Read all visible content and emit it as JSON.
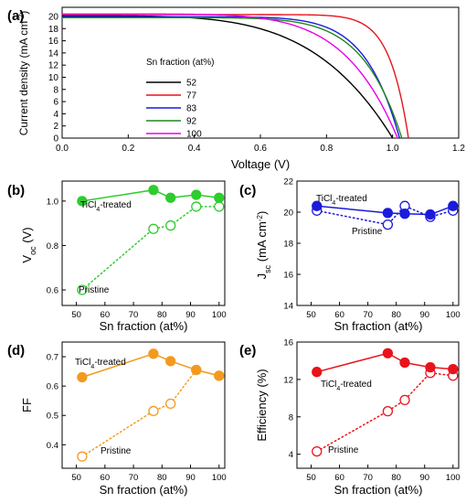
{
  "chart_data": [
    {
      "panel": "(a)",
      "type": "line",
      "xlabel": "Voltage (V)",
      "ylabel": "Current density (mA cm⁻²)",
      "xlim": [
        0.0,
        1.2
      ],
      "ylim": [
        0,
        21.5
      ],
      "xticks": [
        "0.0",
        "0.2",
        "0.4",
        "0.6",
        "0.8",
        "1.0",
        "1.2"
      ],
      "yticks": [
        "0",
        "2",
        "4",
        "6",
        "8",
        "10",
        "12",
        "14",
        "16",
        "18",
        "20"
      ],
      "legend_title": "Sn fraction (at%)",
      "legend_position": "center",
      "series": [
        {
          "name": "52",
          "color": "#000000",
          "jsc": 20.1,
          "voc": 1.0,
          "knee": 0.5
        },
        {
          "name": "77",
          "color": "#e8141b",
          "jsc": 20.3,
          "voc": 1.048,
          "knee": 0.88
        },
        {
          "name": "83",
          "color": "#1a1adc",
          "jsc": 19.95,
          "voc": 1.021,
          "knee": 0.78
        },
        {
          "name": "92",
          "color": "#1c8a1c",
          "jsc": 19.8,
          "voc": 1.028,
          "knee": 0.75
        },
        {
          "name": "100",
          "color": "#e800e8",
          "jsc": 20.4,
          "voc": 1.015,
          "knee": 0.66
        }
      ]
    },
    {
      "panel": "(b)",
      "type": "line",
      "xlabel": "Sn fraction (at%)",
      "ylabel": "Voc (V)",
      "xlim": [
        45,
        102
      ],
      "ylim": [
        0.53,
        1.09
      ],
      "xticks": [
        50,
        60,
        70,
        80,
        90,
        100
      ],
      "yticks": [
        0.6,
        0.8,
        1.0
      ],
      "ytick_labels": [
        "0.6",
        "0.8",
        "1.0"
      ],
      "color": "#2ecc2e",
      "x": [
        52,
        77,
        83,
        92,
        100
      ],
      "series": [
        {
          "name": "TiCl4-treated",
          "values": [
            1.0,
            1.05,
            1.015,
            1.028,
            1.015
          ],
          "style": "solid-filled"
        },
        {
          "name": "Pristine",
          "values": [
            0.6,
            0.875,
            0.89,
            0.975,
            0.975
          ],
          "style": "dotted-open"
        }
      ]
    },
    {
      "panel": "(c)",
      "type": "line",
      "xlabel": "Sn fraction (at%)",
      "ylabel": "Jsc (mA cm⁻²)",
      "xlim": [
        45,
        102
      ],
      "ylim": [
        14,
        22
      ],
      "xticks": [
        50,
        60,
        70,
        80,
        90,
        100
      ],
      "yticks": [
        14,
        16,
        18,
        20,
        22
      ],
      "ytick_labels": [
        "14",
        "16",
        "18",
        "20",
        "22"
      ],
      "color": "#1a1adc",
      "x": [
        52,
        77,
        83,
        92,
        100
      ],
      "series": [
        {
          "name": "TiCl4-treated",
          "values": [
            20.4,
            19.95,
            19.9,
            19.85,
            20.4
          ],
          "style": "solid-filled"
        },
        {
          "name": "Pristine",
          "values": [
            20.1,
            19.2,
            20.4,
            19.7,
            20.1
          ],
          "style": "dotted-open"
        }
      ]
    },
    {
      "panel": "(d)",
      "type": "line",
      "xlabel": "Sn fraction (at%)",
      "ylabel": "FF",
      "xlim": [
        45,
        102
      ],
      "ylim": [
        0.32,
        0.75
      ],
      "xticks": [
        50,
        60,
        70,
        80,
        90,
        100
      ],
      "yticks": [
        0.4,
        0.5,
        0.6,
        0.7
      ],
      "ytick_labels": [
        "0.4",
        "0.5",
        "0.6",
        "0.7"
      ],
      "color": "#f39a1e",
      "x": [
        52,
        77,
        83,
        92,
        100
      ],
      "series": [
        {
          "name": "TiCl4-treated",
          "values": [
            0.63,
            0.71,
            0.685,
            0.655,
            0.635
          ],
          "style": "solid-filled"
        },
        {
          "name": "Pristine",
          "values": [
            0.36,
            0.515,
            0.54,
            0.655,
            0.635
          ],
          "style": "dotted-open"
        }
      ]
    },
    {
      "panel": "(e)",
      "type": "line",
      "xlabel": "Sn fraction (at%)",
      "ylabel": "Efficiency (%)",
      "xlim": [
        45,
        102
      ],
      "ylim": [
        2.5,
        16
      ],
      "xticks": [
        50,
        60,
        70,
        80,
        90,
        100
      ],
      "yticks": [
        4,
        8,
        12,
        16
      ],
      "ytick_labels": [
        "4",
        "8",
        "12",
        "16"
      ],
      "color": "#e8141b",
      "x": [
        52,
        77,
        83,
        92,
        100
      ],
      "series": [
        {
          "name": "TiCl4-treated",
          "values": [
            12.8,
            14.8,
            13.8,
            13.3,
            13.1
          ],
          "style": "solid-filled"
        },
        {
          "name": "Pristine",
          "values": [
            4.3,
            8.6,
            9.8,
            12.7,
            12.4
          ],
          "style": "dotted-open"
        }
      ]
    }
  ],
  "labels": {
    "a_panel": "(a)",
    "b_panel": "(b)",
    "c_panel": "(c)",
    "d_panel": "(d)",
    "e_panel": "(e)",
    "ticl4_main": "TiCl",
    "ticl4_sub": "4",
    "ticl4_rest": "-treated",
    "pristine": "Pristine",
    "voc_V": "V",
    "voc_sub": "oc",
    "voc_unit": " (V)",
    "jsc_J": "J",
    "jsc_sub": "sc",
    "jsc_unit": " (mA cm",
    "jsc_sup": "-2",
    "jsc_close": ")",
    "cd_main": "Current density (mA cm",
    "cd_sup": "-2",
    "cd_close": ")"
  }
}
